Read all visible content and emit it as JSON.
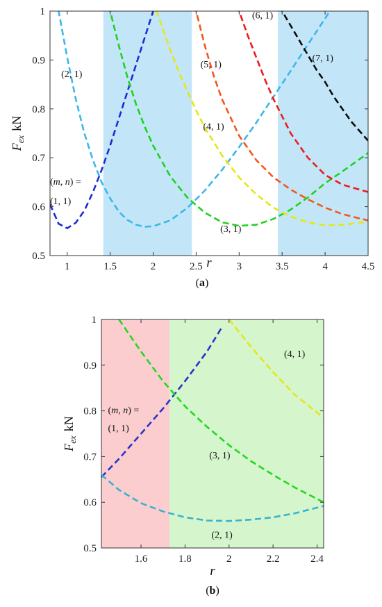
{
  "chart_data": [
    {
      "type": "line",
      "panel": "a",
      "caption": "a",
      "ylabel_base": "F",
      "ylabel_sub": "ex",
      "ylabel_unit": "kN",
      "xlabel": "r",
      "xlim": [
        0.8,
        4.5
      ],
      "ylim": [
        0.5,
        1.0
      ],
      "xticks": [
        "1",
        "1.5",
        "2",
        "2.5",
        "3",
        "3.5",
        "4",
        "4.5"
      ],
      "xtick_values": [
        1,
        1.5,
        2,
        2.5,
        3,
        3.5,
        4,
        4.5
      ],
      "yticks": [
        "0.5",
        "0.6",
        "0.7",
        "0.8",
        "0.9",
        "1"
      ],
      "ytick_values": [
        0.5,
        0.6,
        0.7,
        0.8,
        0.9,
        1.0
      ],
      "shaded_bands": [
        {
          "x0": 1.42,
          "x1": 2.45,
          "color": "#c2e6f8"
        },
        {
          "x0": 3.45,
          "x1": 4.5,
          "color": "#c2e6f8"
        }
      ],
      "series": [
        {
          "label": "(1, 1)",
          "color": "#1f2ad6",
          "x": [
            0.8,
            0.9,
            1.0,
            1.1,
            1.2,
            1.3,
            1.4,
            1.5,
            1.6,
            1.7,
            1.8,
            1.9,
            2.0,
            2.1
          ],
          "y": [
            0.605,
            0.565,
            0.556,
            0.567,
            0.592,
            0.63,
            0.675,
            0.725,
            0.78,
            0.835,
            0.89,
            0.945,
            1.0,
            1.05
          ]
        },
        {
          "label": "(2, 1)",
          "color": "#3ab8ea",
          "x": [
            0.8,
            0.9,
            1.0,
            1.1,
            1.2,
            1.3,
            1.4,
            1.5,
            1.6,
            1.7,
            1.8,
            1.9,
            2.0,
            2.2,
            2.4,
            2.6,
            2.8,
            3.0,
            3.2,
            3.4,
            3.6,
            3.8,
            4.0,
            4.2
          ],
          "y": [
            1.08,
            1.0,
            0.905,
            0.82,
            0.75,
            0.695,
            0.65,
            0.617,
            0.59,
            0.573,
            0.563,
            0.559,
            0.56,
            0.572,
            0.598,
            0.633,
            0.675,
            0.722,
            0.772,
            0.825,
            0.878,
            0.932,
            0.985,
            1.04
          ]
        },
        {
          "label": "(3, 1)",
          "color": "#1fd21f",
          "x": [
            1.45,
            1.5,
            1.6,
            1.7,
            1.8,
            1.9,
            2.0,
            2.2,
            2.4,
            2.6,
            2.8,
            3.0,
            3.2,
            3.4,
            3.6,
            3.8,
            4.0,
            4.2,
            4.4,
            4.5
          ],
          "y": [
            1.05,
            1.0,
            0.93,
            0.865,
            0.81,
            0.764,
            0.725,
            0.662,
            0.618,
            0.588,
            0.568,
            0.561,
            0.563,
            0.575,
            0.594,
            0.619,
            0.648,
            0.672,
            0.697,
            0.71
          ]
        },
        {
          "label": "(4, 1)",
          "color": "#e6e617",
          "x": [
            2.0,
            2.1,
            2.2,
            2.3,
            2.4,
            2.5,
            2.6,
            2.8,
            3.0,
            3.2,
            3.4,
            3.6,
            3.8,
            4.0,
            4.2,
            4.4,
            4.5
          ],
          "y": [
            1.02,
            0.97,
            0.92,
            0.875,
            0.835,
            0.797,
            0.762,
            0.705,
            0.66,
            0.625,
            0.598,
            0.58,
            0.568,
            0.562,
            0.563,
            0.567,
            0.57
          ]
        },
        {
          "label": "(5, 1)",
          "color": "#f4561d",
          "x": [
            2.45,
            2.5,
            2.6,
            2.7,
            2.8,
            3.0,
            3.2,
            3.4,
            3.6,
            3.8,
            4.0,
            4.2,
            4.4,
            4.5
          ],
          "y": [
            1.03,
            1.0,
            0.93,
            0.87,
            0.82,
            0.745,
            0.695,
            0.66,
            0.635,
            0.615,
            0.598,
            0.585,
            0.576,
            0.572
          ]
        },
        {
          "label": "(6, 1)",
          "color": "#ee1b1b",
          "x": [
            2.95,
            3.0,
            3.1,
            3.2,
            3.3,
            3.4,
            3.5,
            3.6,
            3.8,
            4.0,
            4.2,
            4.4,
            4.5
          ],
          "y": [
            1.03,
            1.0,
            0.95,
            0.905,
            0.86,
            0.82,
            0.785,
            0.75,
            0.7,
            0.665,
            0.645,
            0.635,
            0.63
          ]
        },
        {
          "label": "(7, 1)",
          "color": "#0b0b0b",
          "x": [
            3.45,
            3.5,
            3.6,
            3.7,
            3.8,
            3.9,
            4.0,
            4.1,
            4.2,
            4.3,
            4.4,
            4.5
          ],
          "y": [
            1.03,
            1.0,
            0.97,
            0.94,
            0.91,
            0.88,
            0.855,
            0.825,
            0.8,
            0.775,
            0.755,
            0.735
          ]
        }
      ],
      "annotations": [
        {
          "text": "(2, 1)",
          "x": 0.93,
          "y": 0.865
        },
        {
          "text": "(5, 1)",
          "x": 2.55,
          "y": 0.885
        },
        {
          "text": "(6, 1)",
          "x": 3.15,
          "y": 0.985
        },
        {
          "text": "(7, 1)",
          "x": 3.85,
          "y": 0.898
        },
        {
          "text": "(4, 1)",
          "x": 2.58,
          "y": 0.758
        },
        {
          "text": "(3, 1)",
          "x": 2.78,
          "y": 0.548
        },
        {
          "text": "(m, n) =",
          "x": 0.8,
          "y": 0.645
        },
        {
          "text": "(1, 1)",
          "x": 0.8,
          "y": 0.605
        }
      ]
    },
    {
      "type": "line",
      "panel": "b",
      "caption": "b",
      "ylabel_base": "F",
      "ylabel_sub": "ex",
      "ylabel_unit": "kN",
      "xlabel": "r",
      "xlim": [
        1.42,
        2.43
      ],
      "ylim": [
        0.5,
        1.0
      ],
      "xticks": [
        "1.6",
        "1.8",
        "2",
        "2.2",
        "2.4"
      ],
      "xtick_values": [
        1.6,
        1.8,
        2.0,
        2.2,
        2.4
      ],
      "yticks": [
        "0.5",
        "0.6",
        "0.7",
        "0.8",
        "0.9",
        "1"
      ],
      "ytick_values": [
        0.5,
        0.6,
        0.7,
        0.8,
        0.9,
        1.0
      ],
      "shaded_bands": [
        {
          "x0": 1.42,
          "x1": 1.73,
          "color": "#fbcdcf"
        },
        {
          "x0": 1.73,
          "x1": 2.43,
          "color": "#d5f5cc"
        }
      ],
      "series": [
        {
          "label": "(1, 1)",
          "color": "#2a34c8",
          "x": [
            1.42,
            1.5,
            1.6,
            1.7,
            1.8,
            1.9,
            1.97
          ],
          "y": [
            0.655,
            0.695,
            0.75,
            0.805,
            0.865,
            0.93,
            0.985
          ]
        },
        {
          "label": "(2, 1)",
          "color": "#38b3cc",
          "x": [
            1.42,
            1.5,
            1.6,
            1.7,
            1.8,
            1.9,
            2.0,
            2.1,
            2.2,
            2.3,
            2.43
          ],
          "y": [
            0.66,
            0.627,
            0.598,
            0.58,
            0.567,
            0.56,
            0.559,
            0.562,
            0.567,
            0.576,
            0.592
          ]
        },
        {
          "label": "(3, 1)",
          "color": "#22d822",
          "x": [
            1.5,
            1.6,
            1.7,
            1.8,
            1.9,
            2.0,
            2.1,
            2.2,
            2.3,
            2.43
          ],
          "y": [
            1.0,
            0.93,
            0.865,
            0.81,
            0.765,
            0.725,
            0.69,
            0.66,
            0.632,
            0.6
          ]
        },
        {
          "label": "(4, 1)",
          "color": "#e6e617",
          "x": [
            2.0,
            2.1,
            2.2,
            2.3,
            2.43
          ],
          "y": [
            1.0,
            0.94,
            0.885,
            0.835,
            0.785
          ]
        }
      ],
      "annotations": [
        {
          "text": "(4, 1)",
          "x": 2.25,
          "y": 0.918
        },
        {
          "text": "(3, 1)",
          "x": 1.91,
          "y": 0.696
        },
        {
          "text": "(2, 1)",
          "x": 1.92,
          "y": 0.522
        },
        {
          "text": "(m, n) =",
          "x": 1.45,
          "y": 0.795
        },
        {
          "text": "(1, 1)",
          "x": 1.45,
          "y": 0.755
        }
      ]
    }
  ]
}
